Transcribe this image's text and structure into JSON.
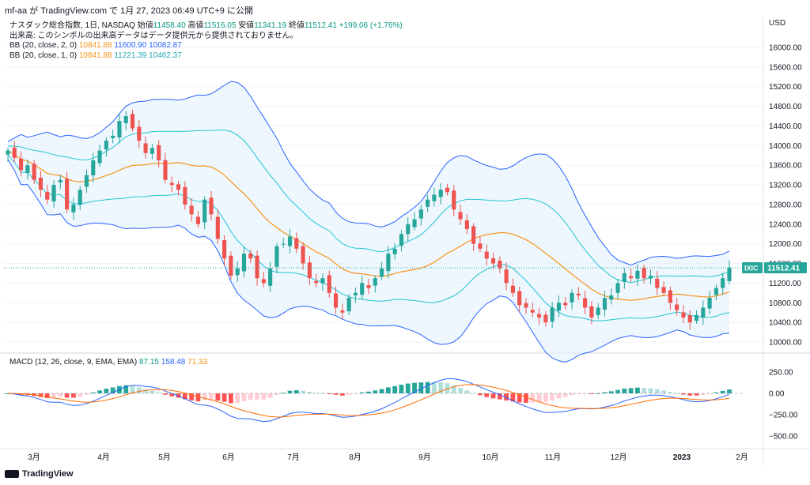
{
  "topbar": {
    "text": "mf-aa が TradingView.com で 1月 27, 2023 06:49 UTC+9 に公開"
  },
  "legend": {
    "line1": "ナスダック総合指数, 1日, NASDAQ",
    "open_label": "始値",
    "open": "11458.40",
    "high_label": "高値",
    "high": "11516.05",
    "low_label": "安値",
    "low": "11341.19",
    "close_label": "終値",
    "close": "11512.41",
    "change": "+199.06 (+1.76%)",
    "volume_note": "出来高: このシンボルの出来高データはデータ提供元から提供されておりません。",
    "bb2_label": "BB (20, close, 2, 0)",
    "bb2_mid": "10841.88",
    "bb2_up": "11600.90",
    "bb2_low": "10082.87",
    "bb1_label": "BB (20, close, 1, 0)",
    "bb1_mid": "10841.88",
    "bb1_up": "11221.39",
    "bb1_low": "10462.37"
  },
  "macd_legend": {
    "label": "MACD (12, 26, close, 9, EMA, EMA)",
    "hist": "87.15",
    "macd": "158.48",
    "signal": "71.33"
  },
  "price_axis": {
    "currency": "USD",
    "ticks": [
      "16000.00",
      "15600.00",
      "15200.00",
      "14800.00",
      "14400.00",
      "14000.00",
      "13600.00",
      "13200.00",
      "12800.00",
      "12400.00",
      "12000.00",
      "11600.00",
      "11200.00",
      "10800.00",
      "10400.00",
      "10000.00"
    ]
  },
  "macd_axis": {
    "ticks": [
      "250.00",
      "0.00",
      "−250.00",
      "−500.00"
    ]
  },
  "time_axis": {
    "labels": [
      "3月",
      "4月",
      "5月",
      "6月",
      "7月",
      "8月",
      "9月",
      "10月",
      "11月",
      "12月",
      "2023",
      "2月"
    ]
  },
  "last_price": {
    "symbol": "IXIC",
    "value": "11512.41"
  },
  "footer": {
    "brand": "TradingView"
  },
  "colors": {
    "up": "#26a69a",
    "down": "#ef5350",
    "bb2": "#2962ff",
    "bb1": "#22c5d1",
    "mid": "#f7931a",
    "fill": "#e3f2fd"
  },
  "chart_data": {
    "type": "candlestick",
    "title": "ナスダック総合指数, 1日, NASDAQ",
    "ylim": [
      9900,
      16400
    ],
    "months": [
      "3月",
      "4月",
      "5月",
      "6月",
      "7月",
      "8月",
      "9月",
      "10月",
      "11月",
      "12月",
      "2023",
      "2月"
    ],
    "close_series": [
      13900,
      13750,
      13500,
      13600,
      13300,
      13100,
      12900,
      13200,
      13300,
      12700,
      12800,
      13100,
      13400,
      13700,
      13900,
      14100,
      14200,
      14500,
      14600,
      14350,
      14100,
      13850,
      13950,
      13700,
      13300,
      13200,
      13100,
      12800,
      12600,
      12400,
      12900,
      12600,
      12100,
      11700,
      11350,
      11500,
      11800,
      11700,
      11300,
      11200,
      11500,
      11950,
      12000,
      12150,
      11900,
      11600,
      11300,
      11200,
      11300,
      11000,
      10700,
      10600,
      10900,
      11000,
      11200,
      11100,
      11300,
      11500,
      11800,
      11900,
      12200,
      12400,
      12500,
      12700,
      12900,
      13000,
      13100,
      13050,
      12700,
      12500,
      12300,
      12000,
      11900,
      11700,
      11600,
      11500,
      11200,
      11000,
      10750,
      10700,
      10600,
      10500,
      10400,
      10700,
      10800,
      10750,
      11000,
      10950,
      10700,
      10500,
      10700,
      10900,
      10950,
      11200,
      11400,
      11300,
      11450,
      11300,
      11350,
      11100,
      11000,
      10800,
      10650,
      10500,
      10400,
      10550,
      10700,
      10900,
      11100,
      11300,
      11512.41
    ],
    "bb2_upper_last": 11600.9,
    "bb2_lower_last": 10082.87,
    "bb_mid_last": 10841.88,
    "bb1_upper_last": 11221.39,
    "bb1_lower_last": 10462.37,
    "macd_ylim": [
      -560,
      330
    ],
    "macd_last": 158.48,
    "signal_last": 71.33,
    "hist_last": 87.15
  }
}
